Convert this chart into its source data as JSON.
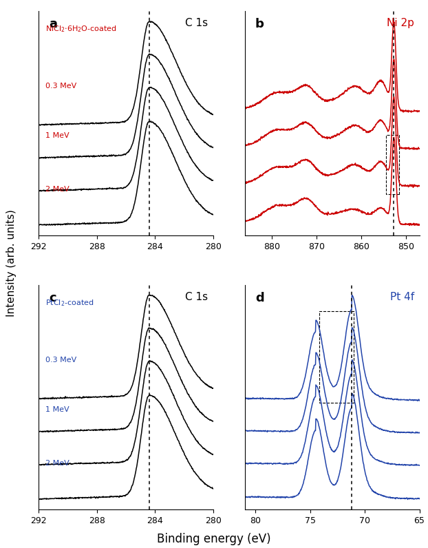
{
  "panel_a": {
    "label": "a",
    "title": "C 1s",
    "title_color": "black",
    "xmin": 292,
    "xmax": 280,
    "line_color": "black",
    "dashed_line_x": 284.4,
    "curve_labels": [
      "NiCl₂·6H₂O-coated",
      "0.3 MeV",
      "1 MeV",
      "2 MeV"
    ],
    "label_color": [
      "#cc0000",
      "#cc0000",
      "#cc0000",
      "#cc0000"
    ],
    "xticks": [
      292,
      288,
      284,
      280
    ]
  },
  "panel_b": {
    "label": "b",
    "title": "Ni 2p",
    "title_color": "#cc0000",
    "xmin": 886,
    "xmax": 847,
    "line_color": "#cc0000",
    "dashed_line_x": 852.7,
    "xticks": [
      880,
      870,
      860,
      850
    ]
  },
  "panel_c": {
    "label": "c",
    "title": "C 1s",
    "title_color": "black",
    "xmin": 292,
    "xmax": 280,
    "line_color": "black",
    "dashed_line_x": 284.4,
    "curve_labels": [
      "PtCl₂-coated",
      "0.3 MeV",
      "1 MeV",
      "2 MeV"
    ],
    "label_color": [
      "#2244aa",
      "#2244aa",
      "#2244aa",
      "#2244aa"
    ],
    "xticks": [
      292,
      288,
      284,
      280
    ]
  },
  "panel_d": {
    "label": "d",
    "title": "Pt 4f",
    "title_color": "#2244aa",
    "xmin": 81,
    "xmax": 65,
    "line_color": "#2244aa",
    "dashed_line_x": 71.2,
    "xticks": [
      80,
      75,
      70,
      65
    ]
  },
  "ylabel": "Intensity (arb. units)",
  "xlabel": "Binding energy (eV)",
  "fig_width": 6.22,
  "fig_height": 7.96
}
